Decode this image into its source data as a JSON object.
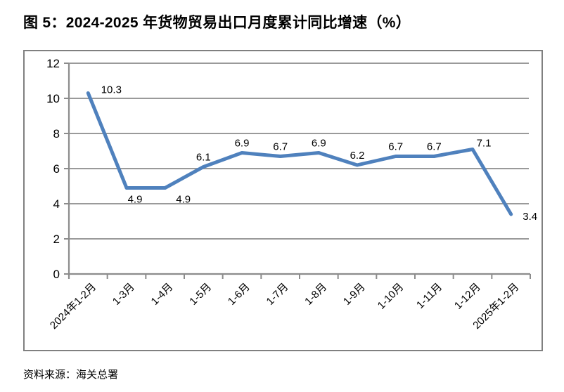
{
  "figure": {
    "title": "图 5：2024-2025 年货物贸易出口月度累计同比增速（%）",
    "source": "资料来源：海关总署"
  },
  "colors": {
    "line": "#4F81BD",
    "grid": "#8C8C8C",
    "axis": "#8C8C8C",
    "frame": "#808080",
    "text": "#000000"
  },
  "chart_data": {
    "type": "line",
    "title": "2024-2025 年货物贸易出口月度累计同比增速（%）",
    "categories": [
      "2024年1-2月",
      "1-3月",
      "1-4月",
      "1-5月",
      "1-6月",
      "1-7月",
      "1-8月",
      "1-9月",
      "1-10月",
      "1-11月",
      "1-12月",
      "2025年1-2月"
    ],
    "values": [
      10.3,
      4.9,
      4.9,
      6.1,
      6.9,
      6.7,
      6.9,
      6.2,
      6.7,
      6.7,
      7.1,
      3.4
    ],
    "xlabel": "",
    "ylabel": "",
    "ylim": [
      0,
      12
    ],
    "ytick_step": 2,
    "grid": true,
    "legend": "none",
    "data_labels": true
  }
}
